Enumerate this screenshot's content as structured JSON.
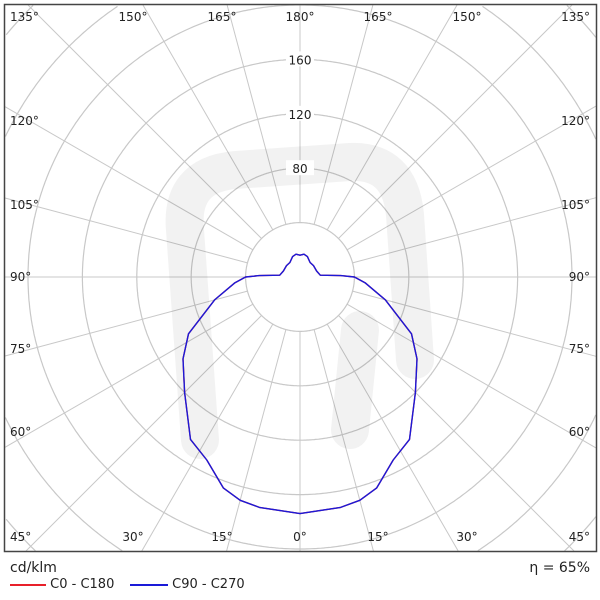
{
  "chart_data": {
    "type": "polar",
    "unit_label": "cd/klm",
    "efficiency": "η = 65%",
    "radial_ticks": [
      80,
      120,
      160
    ],
    "radial_grid": [
      40,
      80,
      120,
      160,
      200,
      240,
      280
    ],
    "angle_step_deg": 15,
    "left_labels": [
      "135°",
      "120°",
      "105°",
      "90°",
      "75°",
      "60°",
      "45°"
    ],
    "right_labels": [
      "135°",
      "120°",
      "105°",
      "90°",
      "75°",
      "60°",
      "45°"
    ],
    "top_labels": [
      "150°",
      "165°",
      "180°",
      "165°",
      "150°"
    ],
    "bottom_labels": [
      "30°",
      "15°",
      "0°",
      "15°",
      "30°"
    ],
    "series": [
      {
        "name": "C0 - C180",
        "color": "#e8202a",
        "gamma": [
          0,
          10,
          15,
          20,
          27,
          34,
          45,
          55,
          63,
          75,
          85,
          90,
          92,
          95,
          110,
          130,
          145,
          160,
          170,
          180
        ],
        "values": [
          174,
          172,
          170,
          165,
          151,
          144,
          120,
          105,
          92,
          65,
          48,
          40,
          30,
          15,
          13,
          13,
          13,
          16,
          17,
          16
        ]
      },
      {
        "name": "C90 - C270",
        "color": "#1a1ad8",
        "gamma": [
          0,
          10,
          15,
          20,
          27,
          34,
          45,
          55,
          63,
          75,
          85,
          90,
          92,
          95,
          110,
          130,
          145,
          160,
          170,
          180
        ],
        "values": [
          174,
          172,
          170,
          165,
          151,
          144,
          120,
          105,
          92,
          65,
          48,
          40,
          30,
          15,
          13,
          13,
          13,
          16,
          17,
          16
        ]
      }
    ]
  }
}
